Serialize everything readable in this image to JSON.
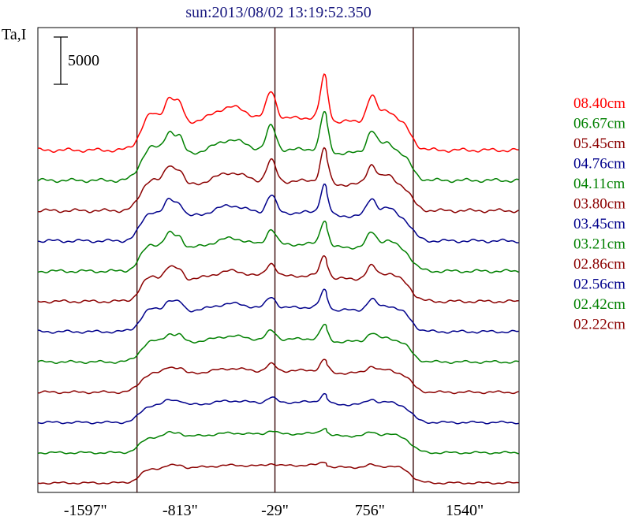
{
  "chart_data": {
    "type": "line",
    "title": "sun:2013/08/02 13:19:52.350",
    "ylabel": "Ta,I",
    "scale_bar_label": "5000",
    "xlim": [
      -1990,
      1990
    ],
    "x_ticks": [
      {
        "value": -1597,
        "label": "-1597\""
      },
      {
        "value": -813,
        "label": "-813\""
      },
      {
        "value": -29,
        "label": "-29\""
      },
      {
        "value": 756,
        "label": "756\""
      },
      {
        "value": 1540,
        "label": "1540\""
      }
    ],
    "vertical_lines": [
      -1170,
      -29,
      1115
    ],
    "series": [
      {
        "name": "02.22cm",
        "color": "#8b0000",
        "offset": 0,
        "amp": 0.8
      },
      {
        "name": "02.42cm",
        "color": "#008000",
        "offset": 3200,
        "amp": 0.86
      },
      {
        "name": "02.56cm",
        "color": "#00008b",
        "offset": 6400,
        "amp": 0.92
      },
      {
        "name": "02.86cm",
        "color": "#8b0000",
        "offset": 9600,
        "amp": 0.98
      },
      {
        "name": "03.21cm",
        "color": "#008000",
        "offset": 12800,
        "amp": 1.04
      },
      {
        "name": "03.45cm",
        "color": "#00008b",
        "offset": 16000,
        "amp": 1.1
      },
      {
        "name": "03.80cm",
        "color": "#8b0000",
        "offset": 19200,
        "amp": 1.16
      },
      {
        "name": "04.11cm",
        "color": "#008000",
        "offset": 22400,
        "amp": 1.22
      },
      {
        "name": "04.76cm",
        "color": "#00008b",
        "offset": 25600,
        "amp": 1.28
      },
      {
        "name": "05.45cm",
        "color": "#8b0000",
        "offset": 28800,
        "amp": 1.34
      },
      {
        "name": "06.67cm",
        "color": "#008000",
        "offset": 32000,
        "amp": 1.4
      },
      {
        "name": "08.40cm",
        "color": "#ff0000",
        "offset": 35200,
        "amp": 1.46
      }
    ],
    "legend_order": [
      "08.40cm",
      "06.67cm",
      "05.45cm",
      "04.76cm",
      "04.11cm",
      "03.80cm",
      "03.45cm",
      "03.21cm",
      "02.86cm",
      "02.56cm",
      "02.42cm",
      "02.22cm"
    ]
  }
}
